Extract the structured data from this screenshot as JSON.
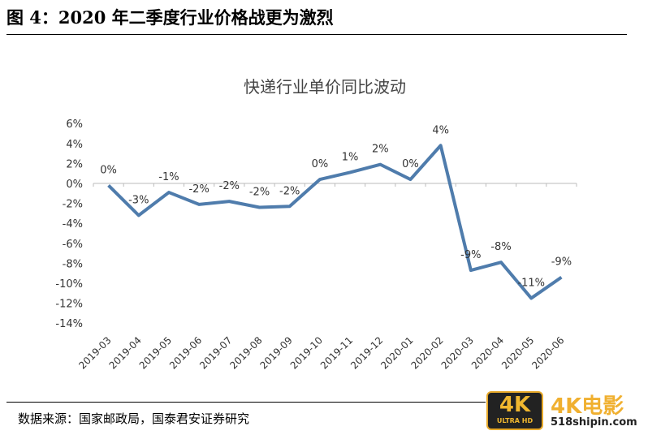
{
  "figure_title": "图 4：2020 年二季度行业价格战更为激烈",
  "source": "数据来源：国家邮政局，国泰君安证券研究",
  "watermark": {
    "badge": "4K",
    "badge_sub": "ULTRA HD",
    "text": "4K电影",
    "url": "518shipin.com"
  },
  "chart_data": {
    "type": "line",
    "title": "快递行业单价同比波动",
    "categories": [
      "2019-03",
      "2019-04",
      "2019-05",
      "2019-06",
      "2019-07",
      "2019-08",
      "2019-09",
      "2019-10",
      "2019-11",
      "2019-12",
      "2020-01",
      "2020-02",
      "2020-03",
      "2020-04",
      "2020-05",
      "2020-06"
    ],
    "series": [
      {
        "values": [
          -0.2,
          -3.2,
          -0.9,
          -2.1,
          -1.8,
          -2.4,
          -2.3,
          0.4,
          1.1,
          1.9,
          0.4,
          3.8,
          -8.7,
          -7.9,
          -11.5,
          -9.4
        ],
        "color": "#4f7cac"
      }
    ],
    "data_labels": [
      "0%",
      "-3%",
      "-1%",
      "-2%",
      "-2%",
      "-2%",
      "-2%",
      "0%",
      "1%",
      "2%",
      "0%",
      "4%",
      "-9%",
      "-8%",
      "-11%",
      "-9%"
    ],
    "y_ticks": [
      "6%",
      "4%",
      "2%",
      "0%",
      "-2%",
      "-4%",
      "-6%",
      "-8%",
      "-10%",
      "-12%",
      "-14%"
    ],
    "ylim": [
      -14,
      6
    ],
    "grid": false,
    "legend": "none"
  }
}
